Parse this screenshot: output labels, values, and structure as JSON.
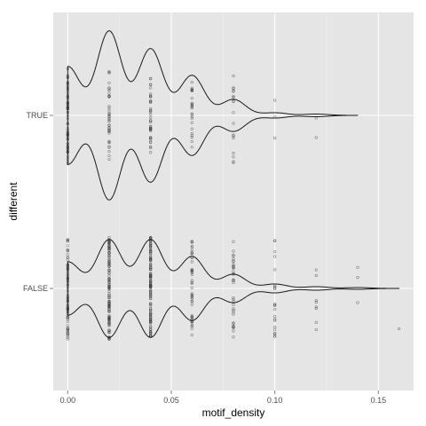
{
  "chart_data": {
    "type": "violin",
    "orientation": "horizontal",
    "xlabel": "motif_density",
    "ylabel": "different",
    "xlim": [
      -0.007,
      0.167
    ],
    "xticks": [
      0.0,
      0.05,
      0.1,
      0.15
    ],
    "xtick_labels": [
      "0.00",
      "0.05",
      "0.10",
      "0.15"
    ],
    "categories": [
      "TRUE",
      "FALSE"
    ],
    "grid": true,
    "background": "#e5e5e5",
    "grid_color": "#ffffff",
    "outline_color": "#333333",
    "point_color": "#333333",
    "series": [
      {
        "category": "TRUE",
        "density_range": [
          0.0,
          0.14
        ],
        "density_peaks": [
          {
            "x": 0.0,
            "width": 0.55
          },
          {
            "x": 0.02,
            "width": 0.95
          },
          {
            "x": 0.04,
            "width": 0.75
          },
          {
            "x": 0.06,
            "width": 0.45
          },
          {
            "x": 0.08,
            "width": 0.18
          },
          {
            "x": 0.1,
            "width": 0.03
          },
          {
            "x": 0.12,
            "width": 0.015
          }
        ],
        "points": [
          {
            "x": 0.0,
            "n": 60,
            "spread": 0.55
          },
          {
            "x": 0.02,
            "n": 40,
            "spread": 0.5
          },
          {
            "x": 0.04,
            "n": 40,
            "spread": 0.42
          },
          {
            "x": 0.06,
            "n": 25,
            "spread": 0.38
          },
          {
            "x": 0.08,
            "n": 18,
            "spread": 0.55
          },
          {
            "x": 0.1,
            "n": 3,
            "spread": 0.4
          },
          {
            "x": 0.12,
            "n": 2,
            "spread": 0.55
          }
        ]
      },
      {
        "category": "FALSE",
        "density_range": [
          0.0,
          0.16
        ],
        "density_peaks": [
          {
            "x": 0.0,
            "width": 0.3
          },
          {
            "x": 0.02,
            "width": 0.55
          },
          {
            "x": 0.04,
            "width": 0.55
          },
          {
            "x": 0.06,
            "width": 0.36
          },
          {
            "x": 0.08,
            "width": 0.16
          },
          {
            "x": 0.1,
            "width": 0.05
          },
          {
            "x": 0.12,
            "width": 0.02
          },
          {
            "x": 0.14,
            "width": 0.01
          }
        ],
        "points": [
          {
            "x": 0.0,
            "n": 70,
            "spread": 0.58
          },
          {
            "x": 0.02,
            "n": 120,
            "spread": 0.58
          },
          {
            "x": 0.04,
            "n": 120,
            "spread": 0.58
          },
          {
            "x": 0.06,
            "n": 45,
            "spread": 0.55
          },
          {
            "x": 0.08,
            "n": 35,
            "spread": 0.55
          },
          {
            "x": 0.1,
            "n": 22,
            "spread": 0.55
          },
          {
            "x": 0.12,
            "n": 8,
            "spread": 0.5
          },
          {
            "x": 0.14,
            "n": 3,
            "spread": 0.4
          },
          {
            "x": 0.16,
            "n": 1,
            "spread": 0.5
          }
        ]
      }
    ]
  }
}
